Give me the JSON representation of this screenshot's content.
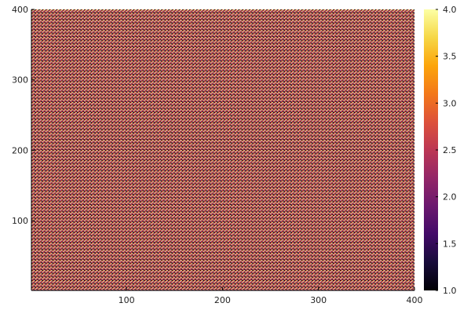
{
  "chart_data": {
    "type": "heatmap",
    "title": "",
    "xlabel": "",
    "ylabel": "",
    "xlim": [
      1,
      400
    ],
    "ylim": [
      1,
      400
    ],
    "x_ticks": [
      100,
      200,
      300,
      400
    ],
    "y_ticks": [
      100,
      200,
      300,
      400
    ],
    "x_tick_labels": [
      "100",
      "200",
      "300",
      "400"
    ],
    "y_tick_labels": [
      "100",
      "200",
      "300",
      "400"
    ],
    "grid": false,
    "legend": "none",
    "colorbar": {
      "range": [
        1.0,
        4.0
      ],
      "ticks": [
        1.0,
        1.5,
        2.0,
        2.5,
        3.0,
        3.5,
        4.0
      ],
      "tick_labels": [
        "1.0",
        "1.5",
        "2.0",
        "2.5",
        "3.0",
        "3.5",
        "4.0"
      ],
      "colormap": "inferno",
      "placement": "right"
    },
    "pattern": {
      "description_values": [
        1,
        2,
        3,
        4
      ],
      "row_period": 4,
      "col_period": 3
    }
  }
}
